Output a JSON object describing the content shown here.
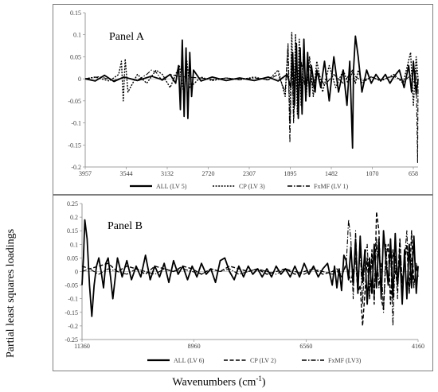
{
  "y_axis_label": "Partial least squares loadings",
  "x_axis_label": "Wavenumbers (cm",
  "x_axis_unit_sup": "-1",
  "x_axis_label_close": ")",
  "chart_data": [
    {
      "type": "line",
      "title": "Panel A",
      "ylim": [
        -0.2,
        0.15
      ],
      "yticks": [
        "0.15",
        "0.1",
        "0.05",
        "0",
        "-0.05",
        "-0.1",
        "-0.15",
        "-0.2"
      ],
      "xlim": [
        3957,
        400
      ],
      "xticks": [
        "3957",
        "3544",
        "3132",
        "2720",
        "2307",
        "1895",
        "1482",
        "1070",
        "658"
      ],
      "legend_position": "bottom",
      "series": [
        {
          "name": "ALL (LV 5)",
          "style": "solid",
          "x": [
            3957,
            3850,
            3750,
            3650,
            3544,
            3400,
            3250,
            3132,
            3050,
            2990,
            2960,
            2940,
            2920,
            2900,
            2880,
            2860,
            2840,
            2820,
            2800,
            2720,
            2600,
            2450,
            2307,
            2150,
            2000,
            1895,
            1800,
            1760,
            1740,
            1720,
            1700,
            1680,
            1660,
            1640,
            1620,
            1600,
            1580,
            1560,
            1540,
            1500,
            1482,
            1440,
            1400,
            1350,
            1300,
            1250,
            1200,
            1160,
            1130,
            1100,
            1090,
            1070,
            1040,
            1000,
            950,
            900,
            850,
            800,
            750,
            700,
            658,
            600,
            550,
            500,
            470,
            450,
            420,
            400
          ],
          "y": [
            0,
            -0.005,
            0.008,
            -0.006,
            0.004,
            -0.004,
            0.006,
            -0.002,
            0.01,
            -0.01,
            0.03,
            -0.07,
            0.088,
            -0.085,
            0.07,
            -0.09,
            0.06,
            -0.04,
            0.02,
            -0.005,
            0.004,
            -0.004,
            0.002,
            -0.004,
            0.004,
            -0.005,
            0.01,
            -0.02,
            0.06,
            -0.06,
            0.08,
            -0.09,
            0.07,
            -0.08,
            0.09,
            -0.05,
            0.06,
            -0.04,
            0.03,
            -0.03,
            0.02,
            -0.02,
            0.04,
            -0.05,
            0.05,
            -0.03,
            0.02,
            -0.06,
            0.04,
            -0.157,
            0.02,
            0.097,
            0.05,
            -0.03,
            0.02,
            -0.01,
            0.01,
            -0.005,
            0.01,
            -0.01,
            0.005,
            0.02,
            -0.02,
            0.03,
            -0.03,
            0.04,
            -0.035,
            0
          ]
        },
        {
          "name": "CP (LV 3)",
          "style": "dotted",
          "x": [
            3957,
            3850,
            3700,
            3600,
            3570,
            3550,
            3530,
            3500,
            3400,
            3300,
            3200,
            3132,
            3050,
            2950,
            2900,
            2870,
            2840,
            2720,
            2600,
            2450,
            2307,
            2150,
            2000,
            1895,
            1820,
            1790,
            1770,
            1750,
            1730,
            1710,
            1690,
            1670,
            1650,
            1620,
            1600,
            1560,
            1520,
            1482,
            1420,
            1350,
            1280,
            1200,
            1150,
            1100,
            1070,
            1040,
            1000,
            900,
            800,
            700,
            658,
            560,
            480,
            450,
            420,
            400
          ],
          "y": [
            0,
            0.004,
            -0.005,
            0.01,
            0.04,
            -0.05,
            0.045,
            -0.03,
            0.01,
            -0.01,
            0.02,
            0.01,
            -0.02,
            0.03,
            -0.04,
            0.04,
            -0.02,
            0.004,
            -0.004,
            0.002,
            -0.002,
            0.004,
            -0.003,
            0.02,
            -0.04,
            0.07,
            -0.1,
            0.105,
            -0.09,
            0.1,
            -0.08,
            0.09,
            -0.06,
            0.08,
            -0.05,
            0.05,
            -0.04,
            0.04,
            -0.03,
            0.03,
            -0.02,
            0.02,
            -0.01,
            0.015,
            -0.01,
            0.02,
            -0.01,
            0.005,
            -0.005,
            0.005,
            0.01,
            -0.01,
            0.06,
            -0.06,
            0.05,
            0
          ]
        },
        {
          "name": "FxMF (LV 1)",
          "style": "dashdot",
          "x": [
            3957,
            3800,
            3650,
            3544,
            3400,
            3300,
            3250,
            3200,
            3132,
            3050,
            2950,
            2720,
            2600,
            2450,
            2307,
            2150,
            2000,
            1895,
            1820,
            1790,
            1770,
            1750,
            1730,
            1700,
            1680,
            1650,
            1600,
            1560,
            1520,
            1482,
            1400,
            1300,
            1200,
            1100,
            1070,
            1000,
            900,
            800,
            700,
            658,
            550,
            470,
            440,
            420,
            405,
            400
          ],
          "y": [
            0,
            0.005,
            -0.004,
            0.004,
            -0.003,
            0.01,
            0.02,
            0.015,
            -0.005,
            0.01,
            0.005,
            0.002,
            -0.002,
            0.002,
            -0.002,
            0.002,
            -0.002,
            0.01,
            -0.03,
            0.08,
            -0.145,
            0.06,
            -0.1,
            0.05,
            -0.06,
            0.04,
            -0.03,
            0.03,
            -0.02,
            0.02,
            -0.015,
            0.01,
            -0.01,
            0.02,
            0.005,
            -0.005,
            0.004,
            -0.003,
            0.004,
            0.005,
            -0.005,
            0.01,
            -0.01,
            0.02,
            -0.19,
            0
          ]
        }
      ]
    },
    {
      "type": "line",
      "title": "Panel B",
      "ylim": [
        -0.25,
        0.25
      ],
      "yticks": [
        "0.25",
        "0.2",
        "0.15",
        "0.1",
        "0.05",
        "0",
        "-0.05",
        "-0.1",
        "-0.15",
        "-0.2",
        "-0.25"
      ],
      "xlim": [
        11360,
        4160
      ],
      "xticks": [
        "11360",
        "8960",
        "6560",
        "4160"
      ],
      "legend_position": "bottom",
      "series": [
        {
          "name": "ALL (LV 6)",
          "style": "solid",
          "x": [
            11360,
            11330,
            11300,
            11250,
            11200,
            11150,
            11100,
            11050,
            11000,
            10950,
            10900,
            10850,
            10800,
            10750,
            10700,
            10600,
            10500,
            10400,
            10300,
            10200,
            10100,
            10000,
            9900,
            9800,
            9700,
            9600,
            9500,
            9400,
            9300,
            9200,
            9100,
            9000,
            8900,
            8800,
            8700,
            8600,
            8500,
            8400,
            8300,
            8200,
            8100,
            8000,
            7900,
            7800,
            7700,
            7600,
            7500,
            7400,
            7300,
            7200,
            7100,
            7000,
            6900,
            6800,
            6700,
            6600,
            6500,
            6400,
            6300,
            6200,
            6100,
            6000,
            5950,
            5900,
            5850,
            5800,
            5750,
            5700,
            5650,
            5600,
            5550,
            5500,
            5450,
            5400,
            5350,
            5300,
            5250,
            5200,
            5150,
            5100,
            5050,
            5000,
            4950,
            4900,
            4850,
            4800,
            4750,
            4700,
            4650,
            4600,
            4550,
            4500,
            4450,
            4400,
            4350,
            4300,
            4250,
            4200,
            4160
          ],
          "y": [
            -0.05,
            0.05,
            0.19,
            0.12,
            -0.05,
            -0.165,
            -0.05,
            0.02,
            0.05,
            0.0,
            -0.06,
            0.03,
            0.05,
            -0.02,
            -0.1,
            0.05,
            -0.02,
            0.04,
            -0.03,
            0.02,
            -0.02,
            0.06,
            -0.03,
            0.02,
            -0.02,
            0.03,
            -0.04,
            0.04,
            -0.01,
            0.02,
            -0.03,
            0.02,
            -0.02,
            0.03,
            -0.01,
            0.01,
            -0.04,
            0.04,
            0.05,
            0.0,
            -0.03,
            0.02,
            -0.02,
            0.02,
            -0.01,
            0.01,
            -0.02,
            0.01,
            -0.02,
            0.02,
            -0.01,
            0.01,
            -0.02,
            0.02,
            -0.02,
            0.03,
            -0.01,
            0.02,
            -0.02,
            0.01,
            0.03,
            -0.05,
            0.02,
            -0.06,
            0.01,
            -0.07,
            0.06,
            0.04,
            -0.03,
            0.09,
            -0.05,
            0.12,
            -0.08,
            0.13,
            -0.04,
            0.08,
            -0.12,
            0.05,
            -0.08,
            0.1,
            -0.06,
            0.12,
            -0.1,
            0.15,
            0.04,
            -0.05,
            0.12,
            -0.1,
            0.14,
            -0.05,
            0.06,
            -0.12,
            0.08,
            -0.1,
            0.1,
            -0.06,
            0.13,
            -0.08,
            0.02
          ]
        },
        {
          "name": "CP (LV 2)",
          "style": "dashed",
          "x": [
            11360,
            11200,
            11000,
            10800,
            10600,
            10400,
            10200,
            10000,
            9800,
            9600,
            9400,
            9200,
            9000,
            8800,
            8600,
            8400,
            8200,
            8000,
            7800,
            7600,
            7400,
            7200,
            7000,
            6800,
            6600,
            6400,
            6200,
            6000,
            5900,
            5800,
            5700,
            5600,
            5500,
            5450,
            5400,
            5350,
            5300,
            5250,
            5200,
            5150,
            5100,
            5050,
            5000,
            4950,
            4900,
            4850,
            4800,
            4750,
            4700,
            4650,
            4600,
            4550,
            4500,
            4450,
            4400,
            4350,
            4300,
            4250,
            4200,
            4160
          ],
          "y": [
            0.02,
            0.01,
            0.02,
            0.03,
            0.0,
            0.02,
            0.01,
            -0.01,
            0.02,
            0.01,
            0.0,
            0.02,
            0.01,
            -0.01,
            0.01,
            0.0,
            0.02,
            0.01,
            0.0,
            0.01,
            -0.01,
            0.0,
            0.01,
            -0.01,
            0.0,
            0.01,
            -0.01,
            0.0,
            0.01,
            -0.02,
            0.03,
            -0.04,
            0.05,
            -0.08,
            -0.05,
            -0.2,
            -0.08,
            0.05,
            -0.1,
            0.08,
            -0.12,
            0.22,
            0.15,
            -0.1,
            -0.14,
            0.05,
            0.1,
            -0.12,
            0.08,
            0.0,
            -0.05,
            0.12,
            -0.06,
            0.03,
            0.1,
            -0.08,
            0.15,
            -0.05,
            0.02,
            -0.02
          ]
        },
        {
          "name": "FxMF (LV3)",
          "style": "dashdot",
          "x": [
            11360,
            11200,
            11000,
            10800,
            10600,
            10400,
            10200,
            10000,
            9800,
            9600,
            9400,
            9200,
            9000,
            8800,
            8600,
            8400,
            8200,
            8000,
            7800,
            7600,
            7400,
            7200,
            7000,
            6800,
            6600,
            6400,
            6200,
            6000,
            5900,
            5800,
            5700,
            5650,
            5600,
            5550,
            5500,
            5450,
            5400,
            5350,
            5300,
            5250,
            5200,
            5150,
            5100,
            5050,
            5000,
            4950,
            4900,
            4850,
            4800,
            4750,
            4700,
            4650,
            4600,
            4550,
            4500,
            4450,
            4400,
            4350,
            4300,
            4250,
            4200,
            4160
          ],
          "y": [
            0.0,
            0.01,
            -0.01,
            0.01,
            0.0,
            -0.01,
            0.01,
            0.0,
            -0.01,
            0.01,
            0.0,
            0.01,
            0.0,
            -0.01,
            0.01,
            0.0,
            0.01,
            -0.01,
            0.0,
            0.01,
            0.0,
            -0.01,
            0.01,
            0.0,
            -0.01,
            0.01,
            0.0,
            -0.01,
            0.0,
            -0.01,
            0.02,
            0.19,
            0.12,
            -0.1,
            0.15,
            -0.05,
            0.08,
            -0.12,
            0.06,
            0.1,
            -0.08,
            0.05,
            -0.1,
            0.12,
            -0.06,
            0.03,
            -0.15,
            0.1,
            -0.05,
            0.08,
            -0.2,
            0.06,
            -0.1,
            0.12,
            -0.04,
            0.05,
            0.15,
            -0.08,
            0.05,
            -0.06,
            0.03,
            0.0
          ]
        }
      ]
    }
  ]
}
